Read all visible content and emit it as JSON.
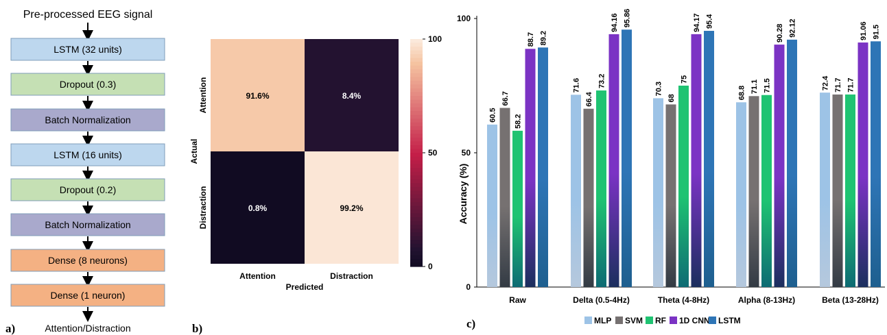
{
  "panels": {
    "a": {
      "label": "a)",
      "input_label": "Pre-processed EEG signal",
      "output_label": "Attention/Distraction",
      "layers": [
        {
          "label": "LSTM (32  units)",
          "color": "#bdd7ee"
        },
        {
          "label": "Dropout (0.3)",
          "color": "#c5e0b4"
        },
        {
          "label": "Batch Normalization",
          "color": "#a9a9cc"
        },
        {
          "label": "LSTM (16 units)",
          "color": "#bdd7ee"
        },
        {
          "label": "Dropout (0.2)",
          "color": "#c5e0b4"
        },
        {
          "label": "Batch Normalization",
          "color": "#a9a9cc"
        },
        {
          "label": "Dense (8 neurons)",
          "color": "#f4b183"
        },
        {
          "label": "Dense (1 neuron)",
          "color": "#f4b183"
        }
      ]
    },
    "b": {
      "label": "b)"
    },
    "c": {
      "label": "c)"
    }
  },
  "chart_data": [
    {
      "type": "heatmap",
      "xlabel": "Predicted",
      "ylabel": "Actual",
      "x_categories": [
        "Attention",
        "Distraction"
      ],
      "y_categories": [
        "Attention",
        "Distraction"
      ],
      "values": [
        [
          91.6,
          8.4
        ],
        [
          0.8,
          99.2
        ]
      ],
      "cell_labels": [
        [
          "91.6%",
          "8.4%"
        ],
        [
          "0.8%",
          "99.2%"
        ]
      ],
      "colorbar": {
        "range": [
          0,
          100
        ],
        "ticks": [
          "0",
          "50",
          "100"
        ]
      }
    },
    {
      "type": "bar",
      "ylabel": "Accuracy (%)",
      "ylim": [
        0,
        100
      ],
      "yticks": [
        "0",
        "50",
        "100"
      ],
      "categories": [
        "Raw",
        "Delta (0.5-4Hz)",
        "Theta (4-8Hz)",
        "Alpha (8-13Hz)",
        "Beta (13-28Hz)"
      ],
      "series": [
        {
          "name": "MLP",
          "color": "#9dc3e6",
          "values": [
            60.5,
            71.6,
            70.3,
            68.8,
            72.4
          ],
          "labels": [
            "60.5",
            "71.6",
            "70.3",
            "68.8",
            "72.4"
          ]
        },
        {
          "name": "SVM",
          "color": "#767171",
          "values": [
            66.7,
            66.4,
            68,
            71.1,
            71.7
          ],
          "labels": [
            "66.7",
            "66.4",
            "68",
            "71.1",
            "71.7"
          ]
        },
        {
          "name": "RF",
          "color": "#1fc372",
          "values": [
            58.2,
            73.2,
            75,
            71.5,
            71.7
          ],
          "labels": [
            "58.2",
            "73.2",
            "75",
            "71.5",
            "71.7"
          ]
        },
        {
          "name": "1D CNN",
          "color": "#7b33c4",
          "values": [
            88.7,
            94.16,
            94.17,
            90.28,
            91.06
          ],
          "labels": [
            "88.7",
            "94.16",
            "94.17",
            "90.28",
            "91.06"
          ]
        },
        {
          "name": "LSTM",
          "color": "#2e75b6",
          "values": [
            89.2,
            95.86,
            95.4,
            92.12,
            91.5
          ],
          "labels": [
            "89.2",
            "95.86",
            "95.4",
            "92.12",
            "91.5"
          ]
        }
      ],
      "legend_position": "bottom"
    }
  ]
}
